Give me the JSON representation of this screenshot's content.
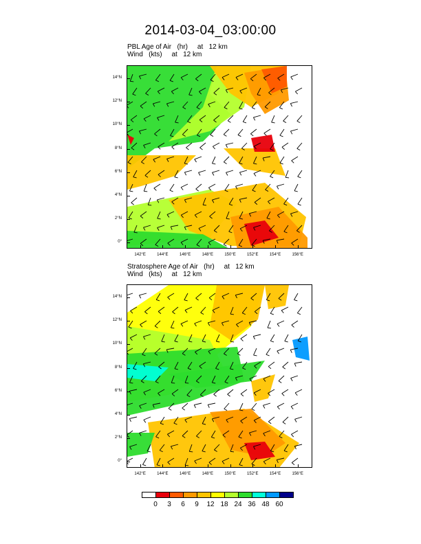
{
  "title": "2014-03-04_03:00:00",
  "chart_data": [
    {
      "type": "heatmap",
      "subtitle_line1": "PBL Age of Air   (hr)     at   12 km",
      "subtitle_line2": "Wind   (kts)     at   12 km",
      "x_ticks": [
        "142°E",
        "144°E",
        "146°E",
        "148°E",
        "150°E",
        "152°E",
        "154°E",
        "156°E"
      ],
      "y_ticks": [
        "0°",
        "2°N",
        "4°N",
        "6°N",
        "8°N",
        "10°N",
        "12°N",
        "14°N"
      ],
      "xlim": [
        140.8,
        157.3
      ],
      "ylim": [
        -0.5,
        15.1
      ],
      "wind_barbs": true
    },
    {
      "type": "heatmap",
      "subtitle_line1": "Stratosphere Age of Air   (hr)     at   12 km",
      "subtitle_line2": "Wind   (kts)     at   12 km",
      "x_ticks": [
        "142°E",
        "144°E",
        "146°E",
        "148°E",
        "150°E",
        "152°E",
        "154°E",
        "156°E"
      ],
      "y_ticks": [
        "0°",
        "2°N",
        "4°N",
        "6°N",
        "8°N",
        "10°N",
        "12°N",
        "14°N"
      ],
      "xlim": [
        140.8,
        157.3
      ],
      "ylim": [
        -0.5,
        15.1
      ],
      "wind_barbs": true
    }
  ],
  "colorbar": {
    "labels": [
      "0",
      "3",
      "6",
      "9",
      "12",
      "18",
      "24",
      "36",
      "48",
      "60"
    ],
    "colors": [
      "#ffffff",
      "#e8000b",
      "#ff5a00",
      "#ff9a00",
      "#ffc400",
      "#ffff00",
      "#b4ff2d",
      "#2ddc2d",
      "#00ffd9",
      "#0099ff",
      "#00008a"
    ]
  }
}
